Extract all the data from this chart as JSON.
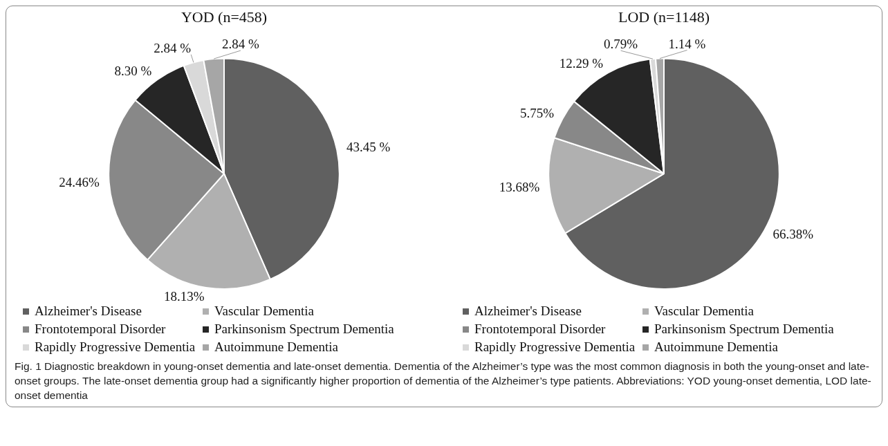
{
  "chart_data": [
    {
      "type": "pie",
      "title": "YOD (n=458)",
      "categories": [
        "Alzheimer's Disease",
        "Vascular Dementia",
        "Frontotemporal Disorder",
        "Parkinsonism Spectrum Dementia",
        "Rapidly Progressive Dementia",
        "Autoimmune Dementia"
      ],
      "values": [
        43.45,
        18.13,
        24.46,
        8.3,
        2.84,
        2.84
      ],
      "value_labels": [
        "43.45 %",
        "18.13%",
        "24.46%",
        "8.30 %",
        "2.84 %",
        "2.84 %"
      ],
      "colors": [
        "#606060",
        "#b0b0b0",
        "#888888",
        "#262626",
        "#d9d9d9",
        "#a6a6a6"
      ],
      "legend": "bottom"
    },
    {
      "type": "pie",
      "title": "LOD (n=1148)",
      "categories": [
        "Alzheimer's Disease",
        "Vascular Dementia",
        "Frontotemporal Disorder",
        "Parkinsonism Spectrum Dementia",
        "Rapidly Progressive Dementia",
        "Autoimmune Dementia"
      ],
      "values": [
        66.38,
        13.68,
        5.75,
        12.29,
        0.79,
        1.14
      ],
      "value_labels": [
        "66.38%",
        "13.68%",
        "5.75%",
        "12.29 %",
        "0.79%",
        "1.14 %"
      ],
      "colors": [
        "#606060",
        "#b0b0b0",
        "#888888",
        "#262626",
        "#d9d9d9",
        "#a6a6a6"
      ],
      "legend": "bottom",
      "annotations": [
        "Fig. 1  Diagnostic breakdown in young-onset dementia and late-onset dementia. Dementia of the Alzheimer’s type was the most common diagnosis in both the young-onset and late-onset groups. The late-onset dementia group had a significantly higher proportion of dementia of the Alzheimer’s type patients. Abbreviations: YOD young-onset dementia, LOD late-onset dementia"
      ]
    }
  ]
}
